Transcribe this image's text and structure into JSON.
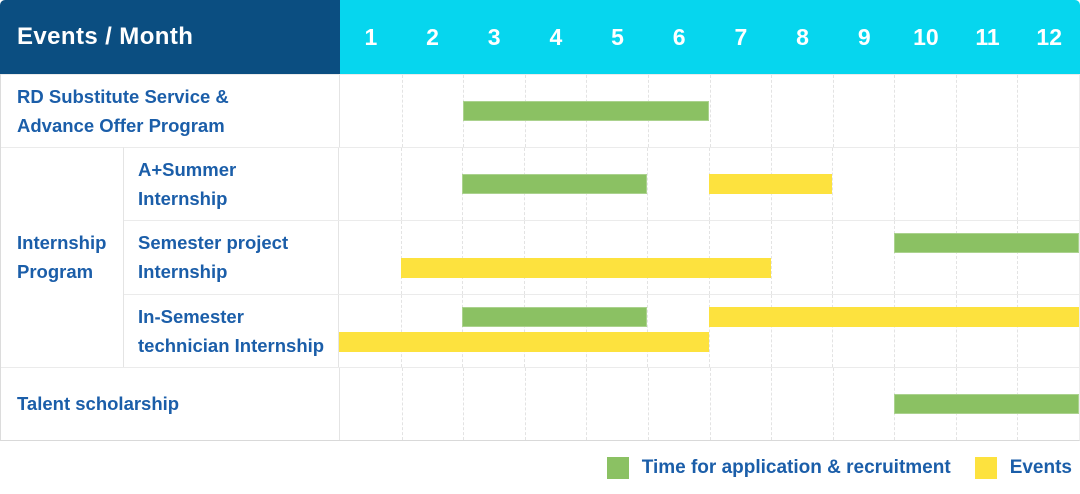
{
  "colors": {
    "header_navy": "#0b4e81",
    "header_cyan": "#06d6ee",
    "recruitment": "#8bc163",
    "event": "#fde23e",
    "label_text": "#1b5ea9",
    "header_text": "#ffffff"
  },
  "chart_data": {
    "type": "gantt",
    "title": "Events / Month",
    "x_ticks": [
      "1",
      "2",
      "3",
      "4",
      "5",
      "6",
      "7",
      "8",
      "9",
      "10",
      "11",
      "12"
    ],
    "x_range": [
      1,
      12
    ],
    "grid": "vertical-dashed",
    "group": {
      "label_lines": [
        "Internship",
        "Program"
      ]
    },
    "rows": [
      {
        "id": "rd-substitute-service",
        "label_lines": [
          "RD Substitute Service &",
          "Advance Offer Program"
        ],
        "lanes": [
          [
            {
              "type": "recruitment",
              "start": 3,
              "end": 6
            }
          ]
        ]
      },
      {
        "id": "a-plus-summer-internship",
        "group": "Internship Program",
        "label_lines": [
          "A+Summer",
          "Internship"
        ],
        "lanes": [
          [
            {
              "type": "recruitment",
              "start": 3,
              "end": 5
            },
            {
              "type": "event",
              "start": 7,
              "end": 8
            }
          ]
        ]
      },
      {
        "id": "semester-project-internship",
        "group": "Internship Program",
        "label_lines": [
          "Semester project",
          "Internship"
        ],
        "lanes": [
          [
            {
              "type": "recruitment",
              "start": 10,
              "end": 12
            }
          ],
          [
            {
              "type": "event",
              "start": 2,
              "end": 7
            }
          ]
        ]
      },
      {
        "id": "in-semester-technician-internship",
        "group": "Internship Program",
        "label_lines": [
          "In-Semester",
          "technician Internship"
        ],
        "lanes": [
          [
            {
              "type": "recruitment",
              "start": 3,
              "end": 5
            },
            {
              "type": "event",
              "start": 7,
              "end": 12
            }
          ],
          [
            {
              "type": "event",
              "start": 1,
              "end": 6
            }
          ]
        ]
      },
      {
        "id": "talent-scholarship",
        "label_lines": [
          "Talent scholarship"
        ],
        "lanes": [
          [
            {
              "type": "recruitment",
              "start": 10,
              "end": 12
            }
          ]
        ]
      }
    ],
    "legend": [
      {
        "type": "recruitment",
        "label": "Time for application & recruitment"
      },
      {
        "type": "event",
        "label": "Events"
      }
    ],
    "legend_position": "bottom-right"
  }
}
